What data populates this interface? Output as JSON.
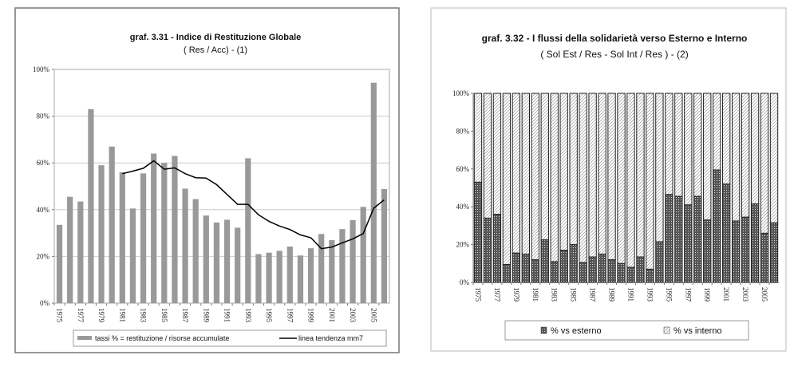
{
  "chart_data": [
    {
      "type": "bar",
      "title": "graf. 3.31 - Indice di Restituzione Globale",
      "subtitle": "( Res / Acc) - (1)",
      "xlabel": "",
      "ylabel": "",
      "ylim": [
        0,
        100
      ],
      "yticks": [
        "0%",
        "20%",
        "40%",
        "60%",
        "80%",
        "100%"
      ],
      "grid": true,
      "legend_position": "bottom",
      "categories": [
        1975,
        1976,
        1977,
        1978,
        1979,
        1980,
        1981,
        1982,
        1983,
        1984,
        1985,
        1986,
        1987,
        1988,
        1989,
        1990,
        1991,
        1992,
        1993,
        1994,
        1995,
        1996,
        1997,
        1998,
        1999,
        2000,
        2001,
        2002,
        2003,
        2004,
        2005,
        2006
      ],
      "xtick_labels": [
        "1975",
        "1977",
        "1979",
        "1981",
        "1983",
        "1985",
        "1987",
        "1989",
        "1991",
        "1993",
        "1995",
        "1997",
        "1999",
        "2001",
        "2003",
        "2005"
      ],
      "series": [
        {
          "name": "tassi % = restituzione / risorse accumulate",
          "type": "bar",
          "color": "#999999",
          "values": [
            33.5,
            45.5,
            43.5,
            83,
            59,
            67,
            56,
            40.5,
            55.5,
            64,
            60,
            63,
            49,
            44.5,
            37.5,
            34.5,
            35.7,
            32.3,
            62,
            21,
            21.6,
            22.4,
            24.2,
            20.4,
            23.5,
            29.6,
            27,
            31.7,
            35.5,
            41.2,
            94.3,
            48.8
          ]
        },
        {
          "name": "linea tendenza mm7",
          "type": "line",
          "color": "#000000",
          "values": [
            null,
            null,
            null,
            null,
            null,
            null,
            55.4,
            56.5,
            57.7,
            60.9,
            57.3,
            57.9,
            55.4,
            53.7,
            53.5,
            50.7,
            46.5,
            42.3,
            42.3,
            37.8,
            35,
            33,
            31.5,
            29.2,
            28,
            23.3,
            24,
            25.8,
            27.5,
            29.8,
            40.6,
            44.2
          ]
        }
      ]
    },
    {
      "type": "bar",
      "stacked": true,
      "title": "graf. 3.32 - I flussi della solidarietà verso Esterno e Interno",
      "subtitle": "( Sol Est / Res -  Sol Int / Res ) - (2)",
      "xlabel": "",
      "ylabel": "",
      "ylim": [
        0,
        100
      ],
      "yticks": [
        "0%",
        "20%",
        "40%",
        "60%",
        "80%",
        "100%"
      ],
      "grid": false,
      "legend_position": "bottom",
      "categories": [
        1975,
        1976,
        1977,
        1978,
        1979,
        1980,
        1981,
        1982,
        1983,
        1984,
        1985,
        1986,
        1987,
        1988,
        1989,
        1990,
        1991,
        1992,
        1993,
        1994,
        1995,
        1996,
        1997,
        1998,
        1999,
        2000,
        2001,
        2002,
        2003,
        2004,
        2005,
        2006
      ],
      "xtick_labels": [
        "1975",
        "1977",
        "1979",
        "1981",
        "1983",
        "1985",
        "1987",
        "1989",
        "1991",
        "1993",
        "1995",
        "1997",
        "1999",
        "2001",
        "2003",
        "2005"
      ],
      "series": [
        {
          "name": "% vs esterno",
          "pattern": "dotted-grid",
          "values": [
            53,
            34,
            36,
            9.5,
            15.5,
            15,
            12,
            22.5,
            11,
            17,
            20,
            10.5,
            13.5,
            15,
            12,
            10,
            8,
            13.5,
            7,
            21.5,
            46.5,
            45.5,
            41,
            45.5,
            33,
            59.5,
            52,
            32.5,
            34.5,
            41.5,
            26,
            31.5
          ]
        },
        {
          "name": "% vs interno",
          "pattern": "diagonal-hatch",
          "values": [
            47,
            66,
            64,
            90.5,
            84.5,
            85,
            88,
            77.5,
            89,
            83,
            80,
            89.5,
            86.5,
            85,
            88,
            90,
            92,
            86.5,
            93,
            78.5,
            53.5,
            54.5,
            59,
            54.5,
            67,
            40.5,
            48,
            67.5,
            65.5,
            58.5,
            74,
            68.5
          ]
        }
      ]
    }
  ]
}
